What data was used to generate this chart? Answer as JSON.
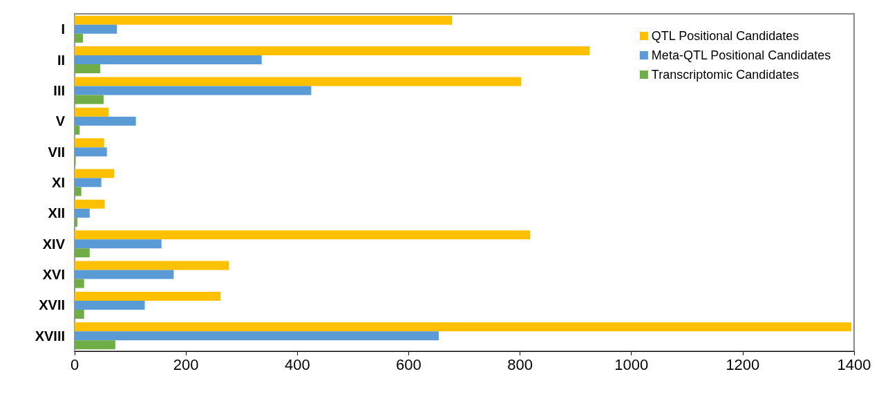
{
  "chart_data": {
    "type": "bar",
    "orientation": "horizontal",
    "categories": [
      "I",
      "II",
      "III",
      "V",
      "VII",
      "XI",
      "XII",
      "XIV",
      "XVI",
      "XVII",
      "XVIII"
    ],
    "series": [
      {
        "name": "QTL Positional Candidates",
        "color": "#ffc000",
        "values": [
          678,
          925,
          802,
          61,
          53,
          71,
          54,
          818,
          277,
          262,
          1395
        ]
      },
      {
        "name": "Meta-QTL Positional Candidates",
        "color": "#5b9bd5",
        "values": [
          76,
          336,
          425,
          110,
          58,
          48,
          27,
          156,
          178,
          126,
          654
        ]
      },
      {
        "name": "Transcriptomic Candidates",
        "color": "#70ad47",
        "values": [
          15,
          46,
          52,
          9,
          2,
          12,
          5,
          27,
          17,
          17,
          73
        ]
      }
    ],
    "xlim": [
      0,
      1400
    ],
    "xticks": [
      0,
      200,
      400,
      600,
      800,
      1000,
      1200,
      1400
    ],
    "grid": false,
    "legend": "top right"
  }
}
